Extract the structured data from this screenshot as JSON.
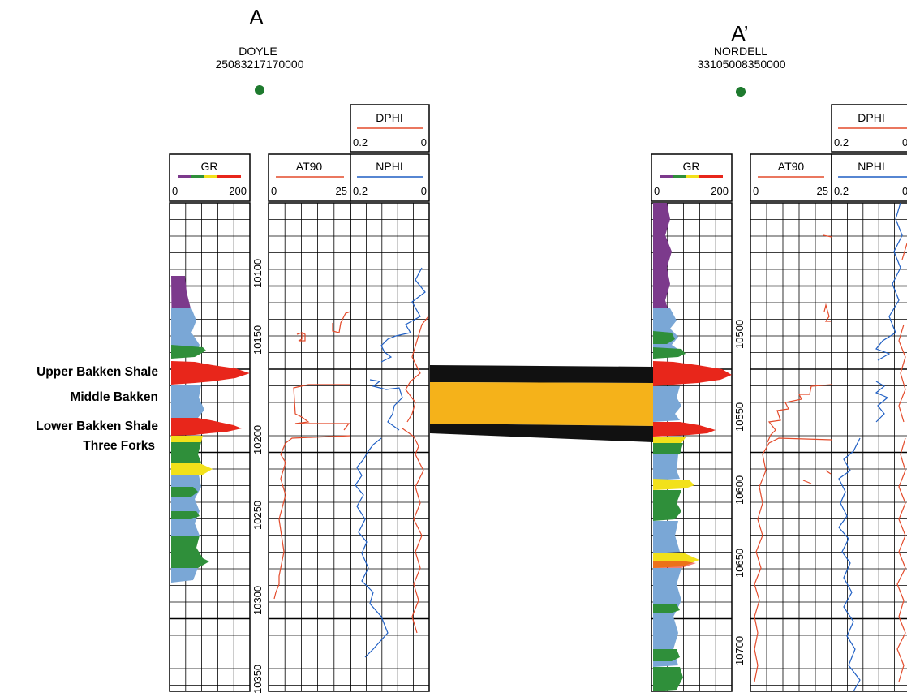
{
  "wells": [
    {
      "section_label": "A",
      "name": "DOYLE",
      "api": "25083217170000",
      "depths": [
        "10100",
        "10150",
        "10200",
        "10250",
        "10300",
        "10350"
      ]
    },
    {
      "section_label": "A’",
      "name": "NORDELL",
      "api": "33105008350000",
      "depths": [
        "10500",
        "10550",
        "10600",
        "10650",
        "10700"
      ]
    }
  ],
  "tracks": {
    "gr": {
      "name": "GR",
      "min": "0",
      "max": "200"
    },
    "at90": {
      "name": "AT90",
      "min": "0",
      "max": "25"
    },
    "dphi": {
      "name": "DPHI",
      "min": "0.2",
      "max": "0"
    },
    "nphi": {
      "name": "NPHI",
      "min": "0.2",
      "max": "0"
    }
  },
  "formations": [
    {
      "key": "upper",
      "label": "Upper Bakken Shale",
      "color": "#111111"
    },
    {
      "key": "middle",
      "label": "Middle Bakken",
      "color": "#f5b21a"
    },
    {
      "key": "lower",
      "label": "Lower Bakken Shale",
      "color": "#111111"
    },
    {
      "key": "threeforks",
      "label": "Three Forks",
      "color": ""
    }
  ],
  "colors": {
    "well_marker": "#1e7a2e",
    "at90_curve": "#e34a2a",
    "dphi_curve": "#e34a2a",
    "nphi_curve": "#1f5fc4",
    "shale_fill": "#e8261b",
    "gr_blue": "#7aa7d6",
    "gr_purple": "#7c3a8c",
    "gr_green": "#2f8f3a",
    "gr_yellow": "#f2e11a"
  }
}
